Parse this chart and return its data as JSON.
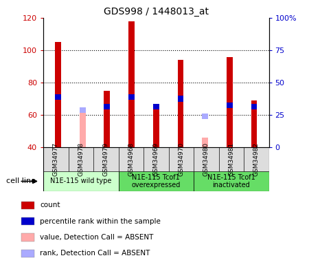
{
  "title": "GDS998 / 1448013_at",
  "samples": [
    "GSM34977",
    "GSM34978",
    "GSM34979",
    "GSM34968",
    "GSM34969",
    "GSM34970",
    "GSM34980",
    "GSM34981",
    "GSM34982"
  ],
  "count_values": [
    105,
    null,
    75,
    118,
    65,
    94,
    null,
    96,
    69
  ],
  "rank_values": [
    71,
    null,
    65,
    71,
    65,
    70,
    null,
    66,
    65
  ],
  "absent_count": [
    null,
    63,
    null,
    null,
    null,
    null,
    46,
    null,
    null
  ],
  "absent_rank": [
    null,
    63,
    null,
    null,
    null,
    null,
    59,
    null,
    null
  ],
  "ylim_left": [
    40,
    120
  ],
  "ylim_right": [
    0,
    100
  ],
  "yticks_left": [
    40,
    60,
    80,
    100,
    120
  ],
  "yticks_right": [
    0,
    25,
    50,
    75,
    100
  ],
  "yticklabels_left": [
    "40",
    "60",
    "80",
    "100",
    "120"
  ],
  "yticklabels_right": [
    "0",
    "25",
    "50",
    "75",
    "100%"
  ],
  "color_count": "#cc0000",
  "color_rank": "#0000cc",
  "color_absent_count": "#ffaaaa",
  "color_absent_rank": "#aaaaff",
  "group_wild_color": "#ccffcc",
  "group_other_color": "#66dd66",
  "groups_info": [
    {
      "start": 0,
      "end": 3,
      "color": "#ccffcc",
      "label": "N1E-115 wild type"
    },
    {
      "start": 3,
      "end": 6,
      "color": "#66dd66",
      "label": "N1E-115 Tcof1\noverexpressed"
    },
    {
      "start": 6,
      "end": 9,
      "color": "#66dd66",
      "label": "N1E-115 Tcof1\ninactivated"
    }
  ],
  "legend_items": [
    {
      "label": "count",
      "color": "#cc0000"
    },
    {
      "label": "percentile rank within the sample",
      "color": "#0000cc"
    },
    {
      "label": "value, Detection Call = ABSENT",
      "color": "#ffaaaa"
    },
    {
      "label": "rank, Detection Call = ABSENT",
      "color": "#aaaaff"
    }
  ],
  "cell_line_label": "cell line"
}
